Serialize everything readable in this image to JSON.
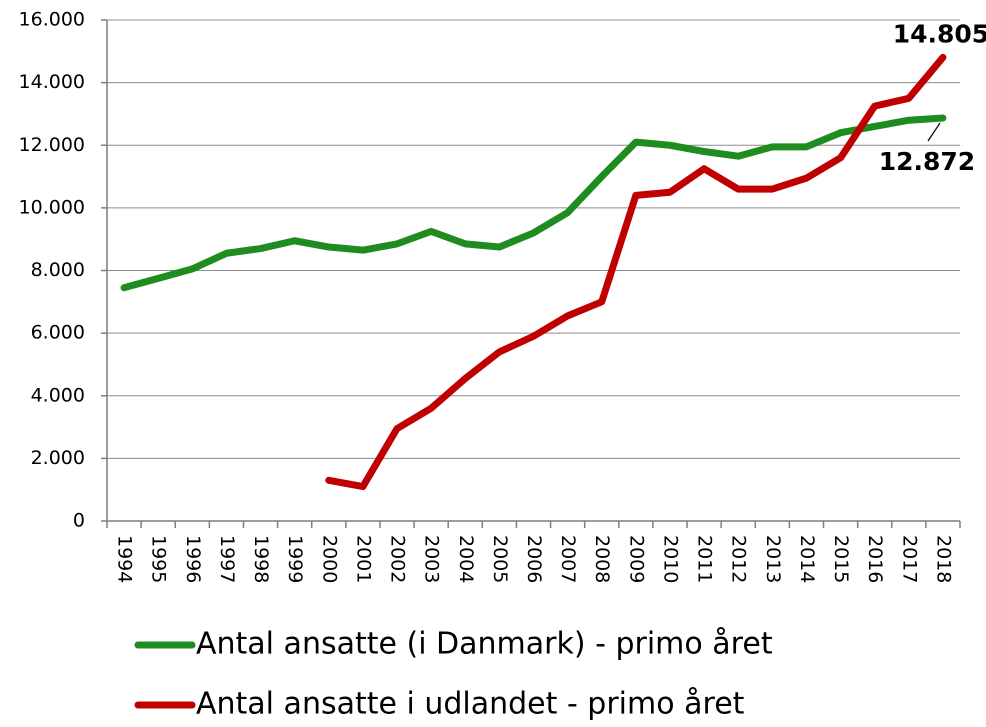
{
  "chart_data": {
    "type": "line",
    "categories": [
      "1994",
      "1995",
      "1996",
      "1997",
      "1998",
      "1999",
      "2000",
      "2001",
      "2002",
      "2003",
      "2004",
      "2005",
      "2006",
      "2007",
      "2008",
      "2009",
      "2010",
      "2011",
      "2012",
      "2013",
      "2014",
      "2015",
      "2016",
      "2017",
      "2018"
    ],
    "series": [
      {
        "name": "Antal ansatte (i Danmark) - primo året",
        "color": "#1e8c1e",
        "values": [
          7450,
          7750,
          8050,
          8550,
          8700,
          8950,
          8750,
          8650,
          8850,
          9250,
          8850,
          8750,
          9200,
          9850,
          11000,
          12100,
          12000,
          11800,
          11650,
          11950,
          11950,
          12400,
          12600,
          12800,
          12872
        ],
        "value_labels": [
          null,
          null,
          null,
          null,
          null,
          null,
          null,
          null,
          null,
          null,
          null,
          null,
          null,
          null,
          null,
          null,
          null,
          null,
          null,
          null,
          null,
          null,
          null,
          null,
          "12.872"
        ]
      },
      {
        "name": "Antal ansatte i udlandet - primo året",
        "color": "#c00000",
        "values": [
          null,
          null,
          null,
          null,
          null,
          null,
          1300,
          1100,
          2950,
          3600,
          4550,
          5400,
          5900,
          6550,
          7000,
          10400,
          10500,
          11250,
          10600,
          10600,
          10950,
          11600,
          13250,
          13500,
          14805
        ],
        "value_labels": [
          null,
          null,
          null,
          null,
          null,
          null,
          null,
          null,
          null,
          null,
          null,
          null,
          null,
          null,
          null,
          null,
          null,
          null,
          null,
          null,
          null,
          null,
          null,
          null,
          "14.805"
        ]
      }
    ],
    "ylim": [
      0,
      16000
    ],
    "yticks": [
      0,
      {
        "value": 2000,
        "label": "2.000"
      },
      {
        "value": 4000,
        "label": "4.000"
      },
      {
        "value": 6000,
        "label": "6.000"
      },
      {
        "value": 8000,
        "label": "8.000"
      },
      {
        "value": 10000,
        "label": "10.000"
      },
      {
        "value": 12000,
        "label": "12.000"
      },
      {
        "value": 14000,
        "label": "14.000"
      },
      {
        "value": 16000,
        "label": "16.000"
      }
    ],
    "grid": true,
    "legend": "bottom"
  }
}
